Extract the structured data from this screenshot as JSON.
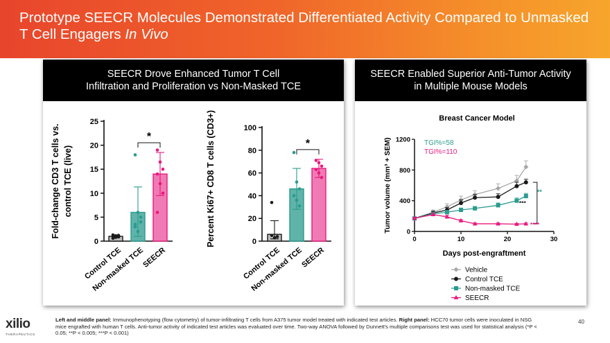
{
  "banner": {
    "title_main": "Prototype SEECR Molecules Demonstrated Differentiated Activity Compared to Unmasked T Cell Engagers ",
    "title_italic": "In Vivo",
    "colors": [
      "#e8452c",
      "#f7a52c"
    ]
  },
  "left_panel": {
    "header_line1": "SEECR Drove Enhanced Tumor T Cell",
    "header_line2": "Infiltration and Proliferation vs Non-Masked TCE"
  },
  "right_panel": {
    "header_line1": "SEECR Enabled Superior Anti-Tumor Activity",
    "header_line2": "in Multiple Mouse Models"
  },
  "chart_data": [
    {
      "type": "bar",
      "title": "",
      "ylabel_line1": "Fold-change CD3 T cells vs.",
      "ylabel_line2": "control TCE (live)",
      "ylim": [
        0,
        25
      ],
      "yticks": [
        0,
        5,
        10,
        15,
        20,
        25
      ],
      "categories": [
        "Control TCE",
        "Non-masked TCE",
        "SEECR"
      ],
      "values": [
        1.0,
        6.0,
        14.0
      ],
      "error_upper": [
        1.3,
        11.3,
        18.5
      ],
      "error_lower": [
        0.7,
        1.0,
        9.5
      ],
      "colors": [
        "#1a1a1a",
        "#2b9b8f",
        "#e8197d"
      ],
      "fills": [
        "#bdbdbd",
        "#5fb3a9",
        "#f07bb4"
      ],
      "points": [
        [
          0.6,
          0.8,
          0.9,
          1.0,
          1.1,
          1.2,
          1.3,
          1.1
        ],
        [
          18.0,
          6.0,
          5.0,
          3.5,
          2.0,
          4.0,
          3.0
        ],
        [
          19.0,
          16.5,
          15.0,
          14.0,
          12.0,
          10.0,
          6.0
        ]
      ],
      "significance": "*",
      "sig_pair": [
        1,
        2
      ]
    },
    {
      "type": "bar",
      "title": "",
      "ylabel": "Percent Ki67+ CD8 T cells (CD3+)",
      "ylim": [
        0,
        100
      ],
      "yticks": [
        0,
        20,
        40,
        60,
        80,
        100
      ],
      "categories": [
        "Control TCE",
        "Non-masked TCE",
        "SEECR"
      ],
      "values": [
        6.0,
        46.0,
        64.0
      ],
      "error_upper": [
        18.0,
        64.0,
        72.0
      ],
      "error_lower": [
        2.0,
        28.0,
        56.0
      ],
      "colors": [
        "#1a1a1a",
        "#2b9b8f",
        "#e8197d"
      ],
      "fills": [
        "#bdbdbd",
        "#5fb3a9",
        "#f07bb4"
      ],
      "points": [
        [
          34.0,
          3.0,
          4.0,
          5.0
        ],
        [
          78.0,
          52.0,
          46.0,
          40.0,
          36.0,
          31.0
        ],
        [
          71.0,
          69.0,
          66.0,
          63.0,
          60.0,
          56.0
        ]
      ],
      "significance": "*",
      "sig_pair": [
        1,
        2
      ]
    },
    {
      "type": "line",
      "title": "Breast Cancer Model",
      "xlabel": "Days post-engraftment",
      "ylabel": "Tumor volume (mm³ + SEM)",
      "xlim": [
        0,
        30
      ],
      "ylim": [
        0,
        1200
      ],
      "xticks": [
        0,
        10,
        20,
        30
      ],
      "yticks": [
        0,
        400,
        800,
        1200
      ],
      "annotations": [
        {
          "text": "TGI%=58",
          "color": "#2b9b8f"
        },
        {
          "text": "TGI%=110",
          "color": "#e8197d"
        }
      ],
      "significance": [
        {
          "text": "**",
          "color": "#2b9b8f"
        },
        {
          "text": "***",
          "color": "#1a1a1a"
        },
        {
          "text": "****",
          "color": "#e8197d"
        }
      ],
      "series": [
        {
          "name": "Vehicle",
          "color": "#a6a6a6",
          "marker": "diamond",
          "x": [
            0,
            4,
            7,
            10,
            13,
            18,
            22,
            24
          ],
          "y": [
            170,
            250,
            320,
            410,
            480,
            560,
            660,
            840
          ],
          "err": [
            20,
            30,
            40,
            50,
            50,
            60,
            70,
            80
          ]
        },
        {
          "name": "Control TCE",
          "color": "#1a1a1a",
          "marker": "circle",
          "x": [
            0,
            4,
            7,
            10,
            13,
            18,
            22,
            24
          ],
          "y": [
            170,
            240,
            280,
            370,
            440,
            450,
            590,
            640
          ],
          "err": [
            20,
            25,
            30,
            40,
            40,
            40,
            50,
            40
          ]
        },
        {
          "name": "Non-masked TCE",
          "color": "#2b9b8f",
          "marker": "square",
          "x": [
            0,
            4,
            7,
            10,
            13,
            18,
            22,
            24
          ],
          "y": [
            170,
            230,
            250,
            280,
            300,
            340,
            400,
            460
          ],
          "err": [
            20,
            20,
            25,
            25,
            25,
            30,
            35,
            35
          ]
        },
        {
          "name": "SEECR",
          "color": "#e8197d",
          "marker": "triangle",
          "x": [
            0,
            4,
            7,
            10,
            13,
            18,
            22,
            24
          ],
          "y": [
            170,
            220,
            190,
            140,
            100,
            100,
            95,
            100
          ],
          "err": [
            15,
            20,
            20,
            15,
            10,
            10,
            10,
            10
          ]
        }
      ]
    }
  ],
  "footnote": {
    "bold_lead": "Left and middle panel:",
    "text1": " Immunophenotyping (flow cytometry) of tumor-infiltrating T cells from A375 tumor model treated with indicated test articles. ",
    "bold_mid": "Right panel:",
    "text2": " HCC70 tumor cells were inoculated in NSG mice engrafted with human T cells. Anti-tumor activity of indicated test articles was evaluated over time. Two-way ANOVA followed by Dunnett's multiple comparisons test was used for statistical analysis (*P < 0.05; **P < 0.005; ***P < 0.001)"
  },
  "logo": {
    "wordmark": "xilio",
    "tagline": "THERAPEUTICS"
  },
  "page_number": "40"
}
